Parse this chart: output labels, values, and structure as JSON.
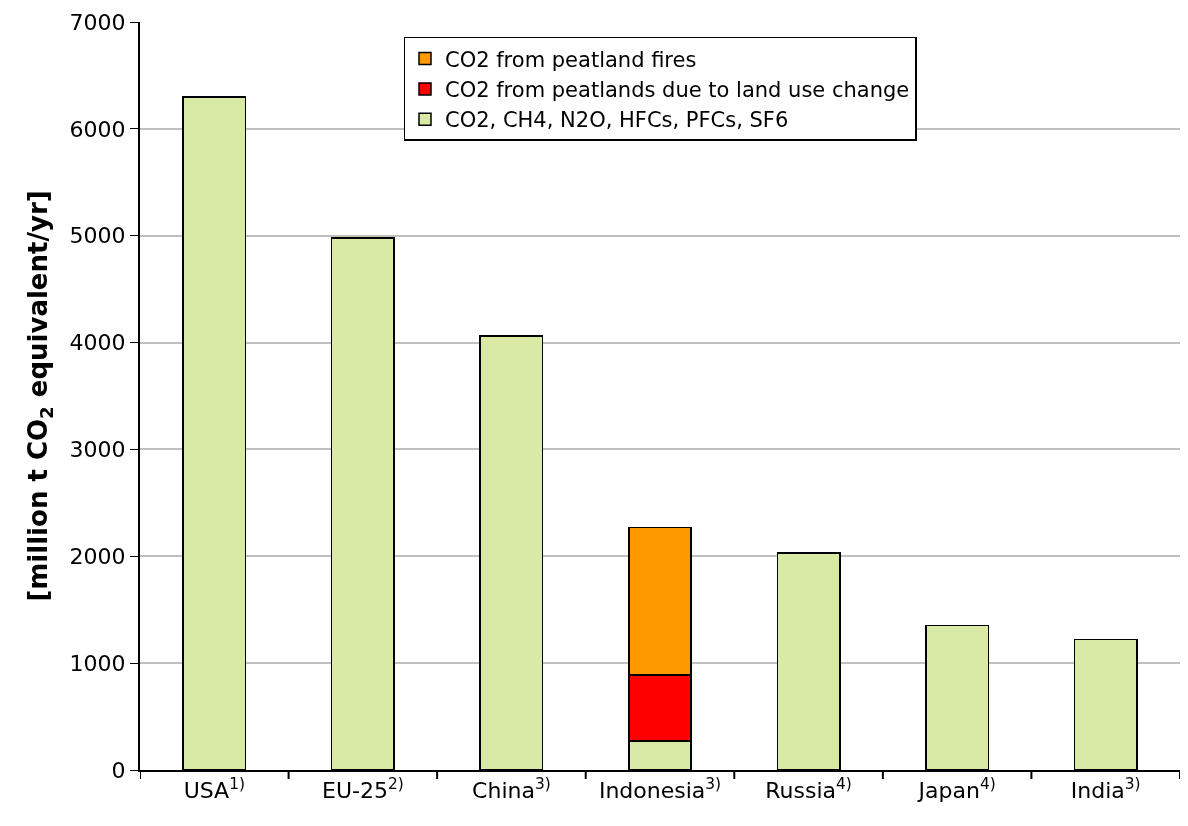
{
  "chart_data": {
    "type": "bar",
    "stacked": true,
    "ylabel": "[million t CO$_{2}$ equivalent/yr]",
    "categories": [
      "USA$^{1)}$",
      "EU-25$^{2)}$",
      "China$^{3)}$",
      "Indonesia$^{3)}$",
      "Russia$^{4)}$",
      "Japan$^{4)}$",
      "India$^{3)}$"
    ],
    "series": [
      {
        "name": "CO2, CH4, N2O, HFCs, PFCs, SF6",
        "color": "#d9eaa4",
        "values": [
          6300,
          4980,
          4060,
          270,
          2030,
          1350,
          1220
        ]
      },
      {
        "name": "CO2 from peatlands due to land use change",
        "color": "#ff0000",
        "values": [
          null,
          null,
          null,
          620,
          null,
          null,
          null
        ]
      },
      {
        "name": "CO2 from peatland fires",
        "color": "#ff9900",
        "values": [
          null,
          null,
          null,
          1380,
          null,
          null,
          null
        ]
      }
    ],
    "ylim": [
      0,
      7000
    ],
    "yticks": [
      0,
      1000,
      2000,
      3000,
      4000,
      5000,
      6000,
      7000
    ],
    "grid": "y",
    "legend": "top"
  }
}
